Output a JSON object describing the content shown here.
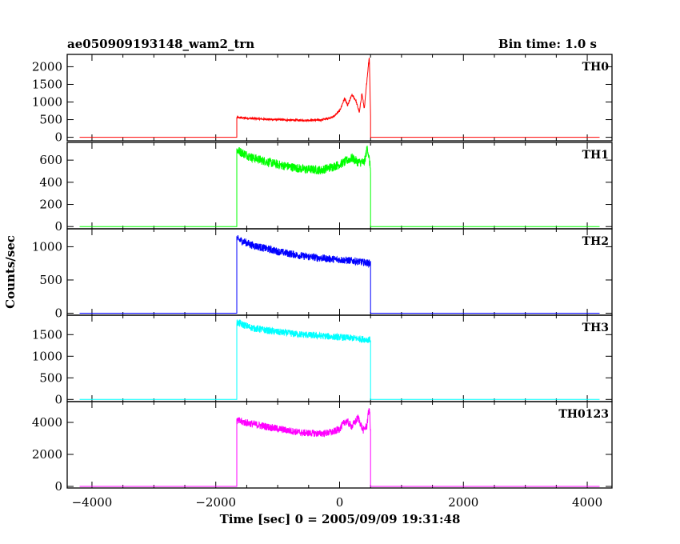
{
  "chart_data": {
    "type": "line",
    "title": "ae050909193148_wam2_trn",
    "bin_time_label": "Bin time: 1.0 s",
    "xlabel": "Time [sec] 0 = 2005/09/09 19:31:48",
    "ylabel": "Counts/sec",
    "xlim": [
      -4400,
      4400
    ],
    "xticks": [
      -4000,
      -2000,
      0,
      2000,
      4000
    ],
    "xtick_labels": [
      "−4000",
      "−2000",
      "0",
      "2000",
      "4000"
    ],
    "grid": false,
    "panels": [
      {
        "name": "TH0",
        "color": "#ff0000",
        "ylim": [
          -100,
          2350
        ],
        "yticks": [
          0,
          500,
          1000,
          1500,
          2000
        ],
        "background": 0,
        "burst_start": -1660,
        "burst_end": 500,
        "x": [
          -1660,
          -1400,
          -1000,
          -600,
          -300,
          -100,
          0,
          80,
          130,
          200,
          260,
          320,
          360,
          400,
          440,
          480,
          500
        ],
        "y": [
          560,
          530,
          500,
          480,
          490,
          580,
          750,
          1100,
          900,
          1200,
          1050,
          700,
          1250,
          800,
          1600,
          2300,
          600
        ]
      },
      {
        "name": "TH1",
        "color": "#00ff00",
        "ylim": [
          -20,
          760
        ],
        "yticks": [
          0,
          200,
          400,
          600
        ],
        "background": 0,
        "burst_start": -1660,
        "burst_end": 500,
        "x": [
          -1660,
          -1400,
          -1000,
          -600,
          -300,
          0,
          200,
          300,
          400,
          450,
          500
        ],
        "y": [
          690,
          620,
          560,
          520,
          510,
          560,
          620,
          580,
          580,
          720,
          520
        ],
        "noise": 35
      },
      {
        "name": "TH2",
        "color": "#0000ff",
        "ylim": [
          -30,
          1270
        ],
        "yticks": [
          0,
          500,
          1000
        ],
        "background": 0,
        "burst_start": -1660,
        "burst_end": 500,
        "x": [
          -1660,
          -1400,
          -1000,
          -600,
          -200,
          200,
          500
        ],
        "y": [
          1120,
          1020,
          930,
          860,
          820,
          790,
          750
        ],
        "noise": 45
      },
      {
        "name": "TH3",
        "color": "#00ffff",
        "ylim": [
          -50,
          1950
        ],
        "yticks": [
          0,
          500,
          1000,
          1500
        ],
        "background": 0,
        "burst_start": -1660,
        "burst_end": 500,
        "x": [
          -1660,
          -1400,
          -1000,
          -600,
          -200,
          200,
          500
        ],
        "y": [
          1780,
          1650,
          1560,
          1500,
          1460,
          1420,
          1380
        ],
        "noise": 55
      },
      {
        "name": "TH0123",
        "color": "#ff00ff",
        "ylim": [
          -100,
          5300
        ],
        "yticks": [
          0,
          2000,
          4000
        ],
        "background": 0,
        "burst_start": -1660,
        "burst_end": 500,
        "x": [
          -1660,
          -1400,
          -1000,
          -600,
          -300,
          -100,
          0,
          100,
          200,
          300,
          380,
          440,
          480,
          500
        ],
        "y": [
          4100,
          3900,
          3600,
          3350,
          3300,
          3400,
          3600,
          4100,
          3750,
          4300,
          3500,
          3800,
          5000,
          3400
        ],
        "noise": 110
      }
    ]
  }
}
